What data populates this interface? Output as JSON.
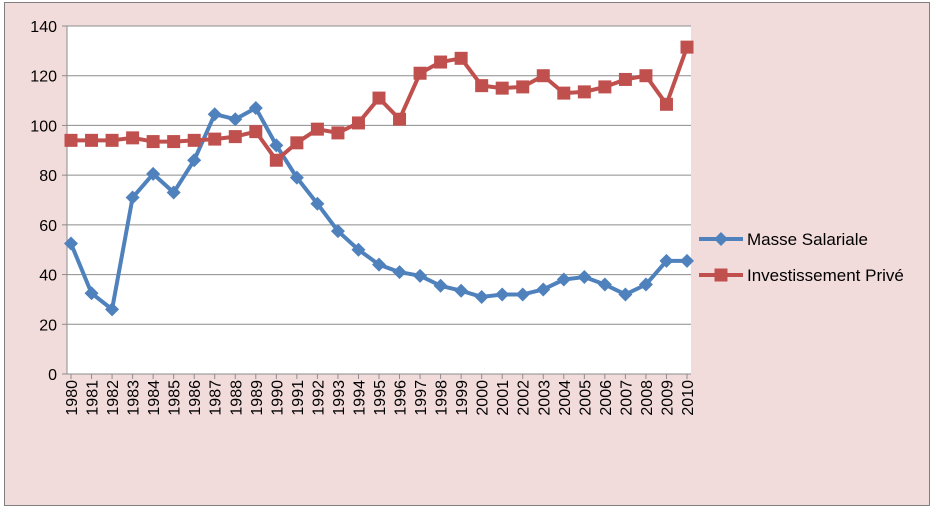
{
  "chart_data": {
    "type": "line",
    "title": "",
    "xlabel": "",
    "ylabel": "",
    "categories": [
      "1980",
      "1981",
      "1982",
      "1983",
      "1984",
      "1985",
      "1986",
      "1987",
      "1988",
      "1989",
      "1990",
      "1991",
      "1992",
      "1993",
      "1994",
      "1995",
      "1996",
      "1997",
      "1998",
      "1999",
      "2000",
      "2001",
      "2002",
      "2003",
      "2004",
      "2005",
      "2006",
      "2007",
      "2008",
      "2009",
      "2010"
    ],
    "ylim": [
      0,
      140
    ],
    "yticks": [
      "0",
      "20",
      "40",
      "60",
      "80",
      "100",
      "120",
      "140"
    ],
    "grid": "horizontal",
    "legend_position": "right",
    "plot_background": "#ffffff",
    "frame_background": "#f2dcdb",
    "series": [
      {
        "name": "Masse Salariale",
        "color": "#4f81bd",
        "marker": "diamond",
        "values": [
          52.5,
          32.5,
          26,
          71,
          80.5,
          73,
          86,
          104.5,
          102.5,
          107,
          92,
          79,
          68.5,
          57.5,
          50,
          44,
          41,
          39.5,
          35.5,
          33.5,
          31,
          32,
          32,
          34,
          38,
          39,
          36,
          32,
          36,
          45.5,
          45.5
        ]
      },
      {
        "name": "Investissement Privé",
        "color": "#c0504d",
        "marker": "square",
        "values": [
          94,
          94,
          94,
          95,
          93.5,
          93.5,
          94,
          94.5,
          95.5,
          97.5,
          86,
          93,
          98.5,
          97,
          101,
          111,
          102.5,
          121,
          125.5,
          127,
          116,
          115,
          115.5,
          120,
          113,
          113.5,
          115.5,
          118.5,
          120,
          108.5,
          131.5
        ]
      }
    ]
  }
}
